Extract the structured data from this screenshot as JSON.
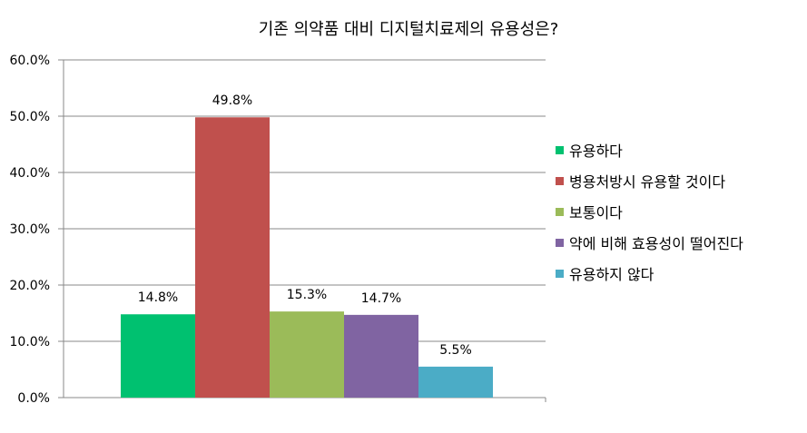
{
  "chart_data": {
    "type": "bar",
    "title": "기존 의약품 대비 디지털치료제의 유용성은?",
    "xlabel": "",
    "ylabel": "",
    "ylim": [
      0,
      60
    ],
    "yticks": [
      "0.0%",
      "10.0%",
      "20.0%",
      "30.0%",
      "40.0%",
      "50.0%",
      "60.0%"
    ],
    "grid": true,
    "legend_position": "right",
    "series": [
      {
        "name": "유용하다",
        "value": 14.8,
        "label": "14.8%",
        "color": "#00c170"
      },
      {
        "name": "병용처방시 유용할 것이다",
        "value": 49.8,
        "label": "49.8%",
        "color": "#c0504d"
      },
      {
        "name": "보통이다",
        "value": 15.3,
        "label": "15.3%",
        "color": "#9bbb59"
      },
      {
        "name": "약에 비해 효용성이 떨어진다",
        "value": 14.7,
        "label": "14.7%",
        "color": "#8064a2"
      },
      {
        "name": "유용하지 않다",
        "value": 5.5,
        "label": "5.5%",
        "color": "#4bacc6"
      }
    ]
  }
}
